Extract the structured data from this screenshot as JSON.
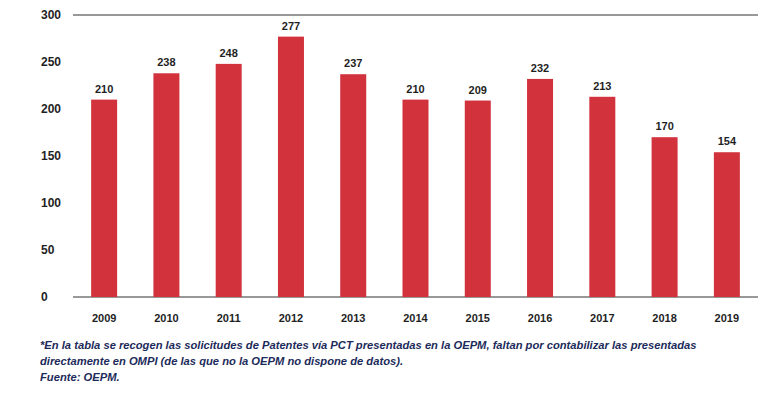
{
  "chart_data": {
    "type": "bar",
    "categories": [
      "2009",
      "2010",
      "2011",
      "2012",
      "2013",
      "2014",
      "2015",
      "2016",
      "2017",
      "2018",
      "2019"
    ],
    "values": [
      210,
      238,
      248,
      277,
      237,
      210,
      209,
      232,
      213,
      170,
      154
    ],
    "color": "#d2323c",
    "ylim": [
      0,
      300
    ],
    "yticks": [
      0,
      50,
      100,
      150,
      200,
      250,
      300
    ],
    "grid": false,
    "data_labels": true,
    "notes": [
      "*En la tabla se recogen las solicitudes de Patentes vía PCT presentadas en la OEPM, faltan por contabilizar las presentadas",
      "directamente en OMPI (de las que no la OEPM no dispone de datos).",
      "Fuente: OEPM."
    ]
  }
}
